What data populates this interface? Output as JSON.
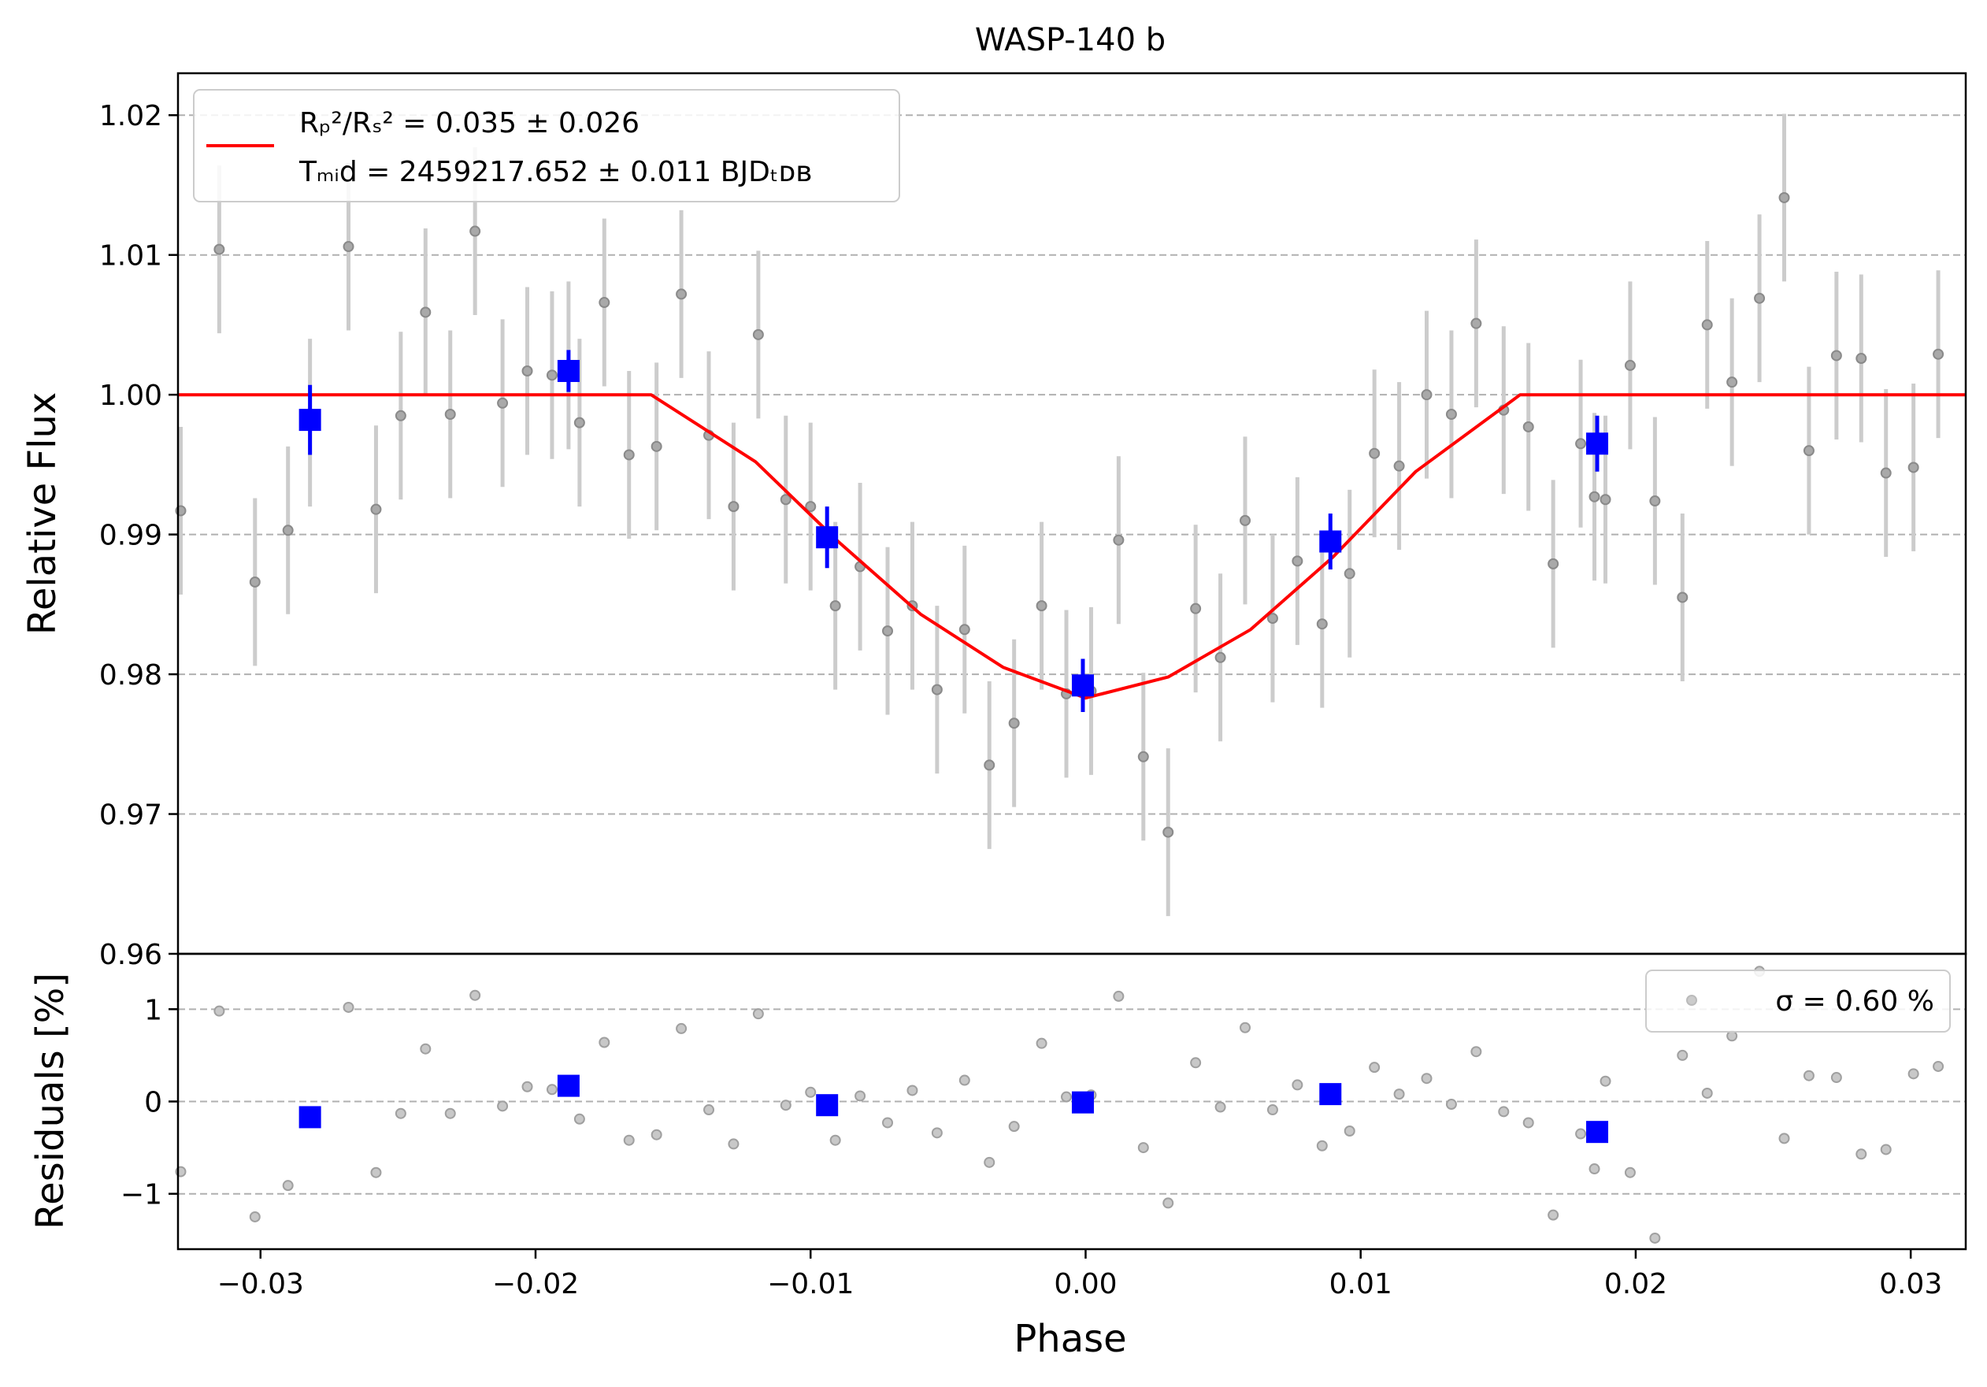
{
  "chart_data": [
    {
      "type": "scatter",
      "title": "WASP-140 b",
      "xlabel": "",
      "ylabel": "Relative Flux",
      "xlim": [
        -0.033,
        0.032
      ],
      "ylim": [
        0.96,
        1.023
      ],
      "yticks": [
        0.96,
        0.97,
        0.98,
        0.99,
        1.0,
        1.01,
        1.02
      ],
      "ytick_labels": [
        "0.96",
        "0.97",
        "0.98",
        "0.99",
        "1.00",
        "1.01",
        "1.02"
      ],
      "grid": "horizontal dashed",
      "legend": {
        "placement": "top-left",
        "line1": "Rₚ²/Rₛ² = 0.035 ± 0.026",
        "line2": "Tₘᵢd = 2459217.652 ± 0.011 BJDₜᴅʙ"
      },
      "series": [
        {
          "kind": "gray-points-with-errorbars",
          "color": "#808080",
          "x": [
            -0.0329,
            -0.0315,
            -0.0302,
            -0.029,
            -0.0282,
            -0.0268,
            -0.0258,
            -0.0249,
            -0.024,
            -0.0231,
            -0.0222,
            -0.0212,
            -0.0203,
            -0.0194,
            -0.0188,
            -0.0184,
            -0.0175,
            -0.0166,
            -0.0156,
            -0.0147,
            -0.0137,
            -0.0128,
            -0.0119,
            -0.0109,
            -0.01,
            -0.0091,
            -0.0082,
            -0.0072,
            -0.0063,
            -0.0054,
            -0.0044,
            -0.0035,
            -0.0026,
            -0.0016,
            -0.0007,
            0.0002,
            0.0012,
            0.0021,
            0.003,
            0.004,
            0.0049,
            0.0058,
            0.0068,
            0.0077,
            0.0086,
            0.0096,
            0.0105,
            0.0114,
            0.0124,
            0.0133,
            0.0142,
            0.0152,
            0.0161,
            0.017,
            0.018,
            0.0185,
            0.0189,
            0.0198,
            0.0207,
            0.0217,
            0.0226,
            0.0235,
            0.0245,
            0.0254,
            0.0263,
            0.0273,
            0.0282,
            0.0291,
            0.0301,
            0.031
          ],
          "y": [
            0.9917,
            1.0104,
            0.9866,
            0.9903,
            0.998,
            1.0106,
            0.9918,
            0.9985,
            1.0059,
            0.9986,
            1.0117,
            0.9994,
            1.0017,
            1.0014,
            1.0021,
            0.998,
            1.0066,
            0.9957,
            0.9963,
            1.0072,
            0.9971,
            0.992,
            1.0043,
            0.9925,
            0.992,
            0.9849,
            0.9877,
            0.9831,
            0.9849,
            0.9789,
            0.9832,
            0.9735,
            0.9765,
            0.9849,
            0.9786,
            0.9788,
            0.9896,
            0.9741,
            0.9687,
            0.9847,
            0.9812,
            0.991,
            0.984,
            0.9881,
            0.9836,
            0.9872,
            0.9958,
            0.9949,
            1.0,
            0.9986,
            1.0051,
            0.9989,
            0.9977,
            0.9879,
            0.9965,
            0.9927,
            0.9925,
            1.0021,
            0.9924,
            0.9855,
            1.005,
            1.0009,
            1.0069,
            1.0141,
            0.996,
            1.0028,
            1.0026,
            0.9944,
            0.9948,
            1.0029
          ],
          "yerr": 0.006
        },
        {
          "kind": "binned-squares",
          "color": "#0000ff",
          "x": [
            -0.0282,
            -0.0188,
            -0.0094,
            -0.0001,
            0.0089,
            0.0186
          ],
          "y": [
            0.9982,
            1.0017,
            0.9898,
            0.9792,
            0.9895,
            0.9965
          ],
          "yerr": [
            0.0025,
            0.0015,
            0.0022,
            0.0019,
            0.002,
            0.002
          ]
        },
        {
          "kind": "transit-model",
          "color": "#ff0000",
          "x": [
            -0.033,
            -0.0158,
            -0.012,
            -0.009,
            -0.006,
            -0.003,
            0.0,
            0.003,
            0.006,
            0.009,
            0.012,
            0.0158,
            0.032
          ],
          "y": [
            1.0,
            1.0,
            0.9952,
            0.9895,
            0.9843,
            0.9805,
            0.9783,
            0.9798,
            0.9832,
            0.9884,
            0.9945,
            1.0,
            1.0
          ]
        }
      ]
    },
    {
      "type": "scatter",
      "title": "",
      "xlabel": "Phase",
      "ylabel": "Residuals [%]",
      "xlim": [
        -0.033,
        0.032
      ],
      "ylim": [
        -1.6,
        1.6
      ],
      "yticks": [
        -1,
        0,
        1
      ],
      "ytick_labels": [
        "−1",
        "0",
        "1"
      ],
      "xticks": [
        -0.03,
        -0.02,
        -0.01,
        0.0,
        0.01,
        0.02,
        0.03
      ],
      "xtick_labels": [
        "−0.03",
        "−0.02",
        "−0.01",
        "0.00",
        "0.01",
        "0.02",
        "0.03"
      ],
      "grid": "horizontal dashed",
      "legend": {
        "placement": "top-right",
        "label": "σ = 0.60 %"
      },
      "series": [
        {
          "kind": "gray-points",
          "color": "#808080",
          "x": [
            -0.0329,
            -0.0315,
            -0.0302,
            -0.029,
            -0.0282,
            -0.0268,
            -0.0258,
            -0.0249,
            -0.024,
            -0.0231,
            -0.0222,
            -0.0212,
            -0.0203,
            -0.0194,
            -0.0188,
            -0.0184,
            -0.0175,
            -0.0166,
            -0.0156,
            -0.0147,
            -0.0137,
            -0.0128,
            -0.0119,
            -0.0109,
            -0.01,
            -0.0091,
            -0.0082,
            -0.0072,
            -0.0063,
            -0.0054,
            -0.0044,
            -0.0035,
            -0.0026,
            -0.0016,
            -0.0007,
            0.0002,
            0.0012,
            0.0021,
            0.003,
            0.004,
            0.0049,
            0.0058,
            0.0068,
            0.0077,
            0.0086,
            0.0096,
            0.0105,
            0.0114,
            0.0124,
            0.0133,
            0.0142,
            0.0152,
            0.0161,
            0.017,
            0.018,
            0.0185,
            0.0189,
            0.0198,
            0.0207,
            0.0217,
            0.0226,
            0.0235,
            0.0245,
            0.0254,
            0.0263,
            0.0273,
            0.0282,
            0.0291,
            0.0301,
            0.031
          ],
          "y": [
            -0.76,
            0.98,
            -1.25,
            -0.91,
            -0.16,
            1.02,
            -0.77,
            -0.13,
            0.57,
            -0.13,
            1.15,
            -0.05,
            0.16,
            0.13,
            0.15,
            -0.19,
            0.64,
            -0.42,
            -0.36,
            0.79,
            -0.09,
            -0.46,
            0.95,
            -0.04,
            0.1,
            -0.42,
            0.06,
            -0.23,
            0.12,
            -0.34,
            0.23,
            -0.66,
            -0.27,
            0.63,
            0.05,
            0.07,
            1.14,
            -0.5,
            -1.1,
            0.42,
            -0.06,
            0.8,
            -0.09,
            0.18,
            -0.48,
            -0.32,
            0.37,
            0.08,
            0.25,
            -0.03,
            0.54,
            -0.11,
            -0.23,
            -1.23,
            -0.35,
            -0.73,
            0.22,
            -0.77,
            -1.48,
            0.5,
            0.09,
            0.71,
            1.41,
            -0.4,
            0.28,
            0.26,
            -0.57,
            -0.52,
            0.3,
            0.38
          ]
        },
        {
          "kind": "binned-squares",
          "color": "#0000ff",
          "x": [
            -0.0282,
            -0.0188,
            -0.0094,
            -0.0001,
            0.0089,
            0.0186
          ],
          "y": [
            -0.17,
            0.17,
            -0.04,
            -0.01,
            0.08,
            -0.33
          ]
        }
      ]
    }
  ]
}
